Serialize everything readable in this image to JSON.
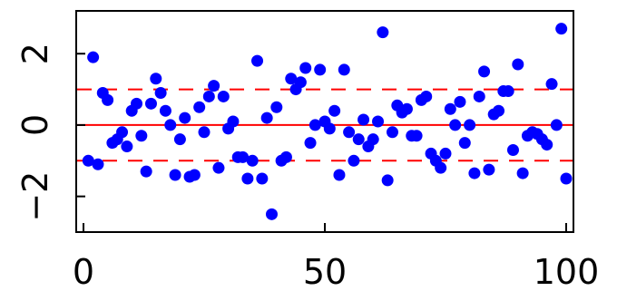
{
  "chart_data": {
    "type": "scatter",
    "title": "",
    "xlabel": "",
    "ylabel": "",
    "xlim": [
      0,
      100
    ],
    "ylim": [
      -3.0,
      3.2
    ],
    "x_ticks": [
      0,
      50,
      100
    ],
    "x_tick_labels": [
      "0",
      "50",
      "100"
    ],
    "y_ticks": [
      -2,
      0,
      2
    ],
    "y_tick_labels": [
      "−2",
      "0",
      "2"
    ],
    "grid": false,
    "legend": "none",
    "colors": {
      "points": "#0000ff",
      "reference_lines": "#ff0000",
      "axes": "#000000"
    },
    "reference_lines": [
      {
        "y": 0,
        "style": "solid"
      },
      {
        "y": 1,
        "style": "dashed"
      },
      {
        "y": -1,
        "style": "dashed"
      }
    ],
    "series": [
      {
        "x": [
          1,
          2,
          3,
          4,
          5,
          6,
          7,
          8,
          9,
          10,
          11,
          12,
          13,
          14,
          15,
          16,
          17,
          18,
          19,
          20,
          21,
          22,
          23,
          24,
          25,
          26,
          27,
          28,
          29,
          30,
          31,
          32,
          33,
          34,
          35,
          36,
          37,
          38,
          39,
          40,
          41,
          42,
          43,
          44,
          45,
          46,
          47,
          48,
          49,
          50,
          51,
          52,
          53,
          54,
          55,
          56,
          57,
          58,
          59,
          60,
          61,
          62,
          63,
          64,
          65,
          66,
          67,
          68,
          69,
          70,
          71,
          72,
          73,
          74,
          75,
          76,
          77,
          78,
          79,
          80,
          81,
          82,
          83,
          84,
          85,
          86,
          87,
          88,
          89,
          90,
          91,
          92,
          93,
          94,
          95,
          96,
          97,
          98,
          99,
          100
        ],
        "y": [
          -1.0,
          1.9,
          -1.1,
          0.9,
          0.7,
          -0.5,
          -0.4,
          -0.2,
          -0.6,
          0.4,
          0.6,
          -0.3,
          -1.3,
          0.6,
          1.3,
          0.9,
          0.4,
          0.0,
          -1.4,
          -0.4,
          0.2,
          -1.45,
          -1.4,
          0.5,
          -0.2,
          0.8,
          1.1,
          -1.2,
          0.8,
          -0.1,
          0.1,
          -0.9,
          -0.9,
          -1.5,
          -1.0,
          1.8,
          -1.5,
          0.2,
          -2.5,
          0.5,
          -1.0,
          -0.9,
          1.3,
          1.0,
          1.2,
          1.6,
          -0.5,
          0.0,
          1.55,
          0.1,
          -0.1,
          0.4,
          -1.4,
          1.55,
          -0.2,
          -1.0,
          -0.4,
          0.15,
          -0.6,
          -0.4,
          0.1,
          2.6,
          -1.55,
          -0.2,
          0.55,
          0.35,
          0.45,
          -0.3,
          -0.3,
          0.7,
          0.8,
          -0.8,
          -1.0,
          -1.2,
          -0.8,
          0.45,
          0.0,
          0.65,
          -0.5,
          0.0,
          -1.35,
          0.8,
          1.5,
          -1.25,
          0.3,
          0.4,
          0.95,
          0.95,
          -0.7,
          1.7,
          -1.35,
          -0.3,
          -0.2,
          -0.25,
          -0.4,
          -0.55,
          1.15,
          0.0,
          2.7,
          -1.5
        ]
      }
    ]
  }
}
